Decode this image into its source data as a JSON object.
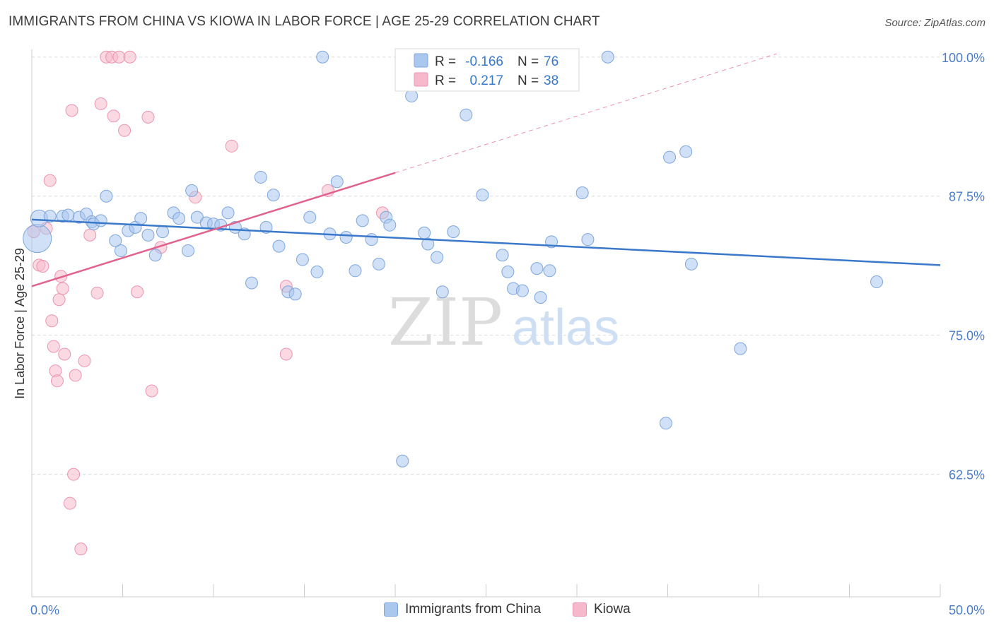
{
  "title": "IMMIGRANTS FROM CHINA VS KIOWA IN LABOR FORCE | AGE 25-29 CORRELATION CHART",
  "source": "Source: ZipAtlas.com",
  "watermark": {
    "zip": "ZIP",
    "atlas": "atlas"
  },
  "colors": {
    "blue_fill": "#aac7ee",
    "blue_stroke": "#7fa6d9",
    "blue_line": "#3a78c9",
    "pink_fill": "#f6b9cb",
    "pink_stroke": "#e995b1",
    "pink_line": "#e0628e",
    "axis_label": "#4a7cc7",
    "grid": "#dcdcdc"
  },
  "legend": {
    "rows": [
      {
        "r_label": "R =",
        "r_value": "-0.166",
        "n_label": "N =",
        "n_value": "76"
      },
      {
        "r_label": "R =",
        "r_value": "0.217",
        "n_label": "N =",
        "n_value": "38"
      }
    ]
  },
  "chart_data": {
    "type": "scatter",
    "title": "IMMIGRANTS FROM CHINA VS KIOWA IN LABOR FORCE | AGE 25-29 CORRELATION CHART",
    "xlabel": "",
    "ylabel": "In Labor Force | Age 25-29",
    "xlim": [
      0,
      50
    ],
    "ylim": [
      51.5,
      101
    ],
    "x_tick_labels": [
      "0.0%",
      "50.0%"
    ],
    "y_ticks": [
      62.5,
      75.0,
      87.5,
      100.0
    ],
    "y_tick_labels": [
      "62.5%",
      "75.0%",
      "87.5%",
      "100.0%"
    ],
    "grid": true,
    "legend_position": "top-center",
    "series": [
      {
        "name": "Immigrants from China",
        "color": "#aac7ee",
        "trend": {
          "x": [
            0,
            50
          ],
          "y": [
            85.4,
            81.3
          ],
          "style": "solid"
        },
        "points": [
          [
            0.3,
            83.7
          ],
          [
            0.4,
            85.5
          ],
          [
            1.0,
            85.7
          ],
          [
            1.7,
            85.7
          ],
          [
            2.0,
            85.8
          ],
          [
            2.6,
            85.6
          ],
          [
            3.0,
            85.9
          ],
          [
            3.3,
            85.2
          ],
          [
            3.4,
            85.0
          ],
          [
            3.8,
            85.3
          ],
          [
            4.1,
            87.5
          ],
          [
            4.6,
            83.5
          ],
          [
            4.9,
            82.6
          ],
          [
            5.3,
            84.4
          ],
          [
            5.7,
            84.7
          ],
          [
            6.0,
            85.5
          ],
          [
            6.4,
            84.0
          ],
          [
            6.8,
            82.2
          ],
          [
            7.2,
            84.3
          ],
          [
            7.8,
            86.0
          ],
          [
            8.1,
            85.5
          ],
          [
            8.6,
            82.6
          ],
          [
            8.8,
            88.0
          ],
          [
            9.1,
            85.6
          ],
          [
            9.6,
            85.1
          ],
          [
            10.0,
            85.0
          ],
          [
            10.4,
            84.9
          ],
          [
            10.8,
            86.0
          ],
          [
            11.2,
            84.7
          ],
          [
            11.7,
            84.1
          ],
          [
            12.1,
            79.7
          ],
          [
            12.6,
            89.2
          ],
          [
            12.9,
            84.7
          ],
          [
            13.3,
            87.6
          ],
          [
            13.6,
            83.0
          ],
          [
            14.1,
            78.9
          ],
          [
            14.5,
            78.7
          ],
          [
            14.9,
            81.8
          ],
          [
            15.3,
            85.6
          ],
          [
            15.7,
            80.7
          ],
          [
            16.0,
            100.0
          ],
          [
            16.4,
            84.1
          ],
          [
            16.8,
            88.8
          ],
          [
            17.3,
            83.8
          ],
          [
            17.8,
            80.8
          ],
          [
            18.2,
            85.3
          ],
          [
            18.7,
            83.6
          ],
          [
            19.1,
            81.4
          ],
          [
            19.5,
            85.6
          ],
          [
            19.7,
            84.9
          ],
          [
            20.4,
            63.7
          ],
          [
            20.9,
            96.5
          ],
          [
            21.6,
            84.2
          ],
          [
            21.8,
            83.2
          ],
          [
            22.3,
            82.0
          ],
          [
            22.6,
            78.9
          ],
          [
            23.2,
            84.3
          ],
          [
            23.9,
            94.8
          ],
          [
            24.8,
            87.6
          ],
          [
            25.9,
            82.2
          ],
          [
            26.2,
            80.7
          ],
          [
            26.5,
            79.2
          ],
          [
            27.0,
            79.0
          ],
          [
            27.8,
            81.0
          ],
          [
            28.0,
            78.4
          ],
          [
            28.5,
            80.8
          ],
          [
            28.6,
            83.4
          ],
          [
            30.3,
            87.8
          ],
          [
            30.6,
            83.6
          ],
          [
            31.7,
            100.0
          ],
          [
            34.9,
            67.1
          ],
          [
            35.1,
            91.0
          ],
          [
            36.0,
            91.5
          ],
          [
            36.3,
            81.4
          ],
          [
            39.0,
            73.8
          ],
          [
            46.5,
            79.8
          ]
        ]
      },
      {
        "name": "Kiowa",
        "color": "#f6b9cb",
        "trend": {
          "x": [
            0,
            20
          ],
          "y": [
            79.4,
            89.6
          ],
          "style": "solid",
          "extension": {
            "x": [
              20,
              41
            ],
            "y": [
              89.6,
              100.3
            ],
            "style": "dashed"
          }
        },
        "points": [
          [
            0.1,
            84.3
          ],
          [
            0.4,
            81.3
          ],
          [
            0.6,
            81.2
          ],
          [
            0.8,
            84.6
          ],
          [
            1.0,
            88.9
          ],
          [
            1.1,
            76.3
          ],
          [
            1.2,
            74.0
          ],
          [
            1.3,
            71.8
          ],
          [
            1.4,
            70.9
          ],
          [
            1.5,
            78.2
          ],
          [
            1.6,
            80.3
          ],
          [
            1.7,
            79.2
          ],
          [
            1.8,
            73.3
          ],
          [
            2.1,
            59.9
          ],
          [
            2.2,
            95.2
          ],
          [
            2.3,
            62.5
          ],
          [
            2.4,
            71.4
          ],
          [
            2.7,
            55.8
          ],
          [
            2.9,
            72.7
          ],
          [
            3.2,
            84.0
          ],
          [
            3.6,
            78.8
          ],
          [
            3.8,
            95.8
          ],
          [
            4.1,
            100.0
          ],
          [
            4.4,
            100.0
          ],
          [
            4.5,
            94.7
          ],
          [
            4.8,
            100.0
          ],
          [
            5.1,
            93.4
          ],
          [
            5.4,
            100.0
          ],
          [
            5.8,
            78.9
          ],
          [
            6.4,
            94.6
          ],
          [
            6.6,
            70.0
          ],
          [
            7.1,
            82.9
          ],
          [
            9.0,
            87.4
          ],
          [
            11.0,
            92.0
          ],
          [
            14.0,
            79.4
          ],
          [
            14.0,
            73.3
          ],
          [
            16.3,
            88.0
          ],
          [
            19.3,
            86.0
          ]
        ]
      }
    ]
  },
  "bottom_legend": [
    "Immigrants from China",
    "Kiowa"
  ]
}
